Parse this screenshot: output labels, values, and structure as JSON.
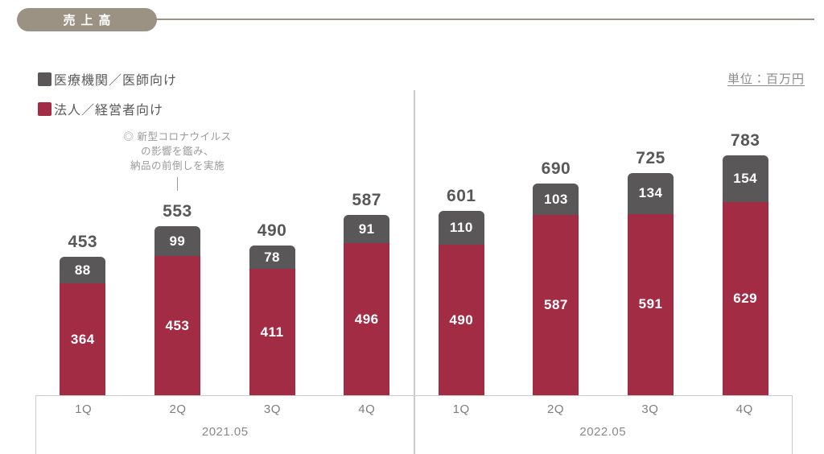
{
  "header": {
    "title": "売上高",
    "unit_label": "単位：百万円"
  },
  "legend": [
    {
      "label": "医療機関／医師向け",
      "color": "#595757"
    },
    {
      "label": "法人／経営者向け",
      "color": "#A32C45"
    }
  ],
  "annotation": {
    "lines": [
      "◎ 新型コロナウイルス",
      "の影響を鑑み、",
      "納品の前倒しを実施"
    ]
  },
  "chart_data": {
    "type": "bar",
    "stacked": true,
    "title": "売上高",
    "unit": "百万円",
    "ylim": [
      0,
      850
    ],
    "grid": false,
    "legend_position": "top-left",
    "groups": [
      {
        "year": "2021.05",
        "categories": [
          "1Q",
          "2Q",
          "3Q",
          "4Q"
        ],
        "series": [
          {
            "name": "法人／経営者向け",
            "color": "#A32C45",
            "values": [
              364,
              453,
              411,
              496
            ]
          },
          {
            "name": "医療機関／医師向け",
            "color": "#595757",
            "values": [
              88,
              99,
              78,
              91
            ]
          }
        ],
        "totals": [
          453,
          553,
          490,
          587
        ]
      },
      {
        "year": "2022.05",
        "categories": [
          "1Q",
          "2Q",
          "3Q",
          "4Q"
        ],
        "series": [
          {
            "name": "法人／経営者向け",
            "color": "#A32C45",
            "values": [
              490,
              587,
              591,
              629
            ]
          },
          {
            "name": "医療機関／医師向け",
            "color": "#595757",
            "values": [
              110,
              103,
              134,
              154
            ]
          }
        ],
        "totals": [
          601,
          690,
          725,
          783
        ]
      }
    ]
  }
}
